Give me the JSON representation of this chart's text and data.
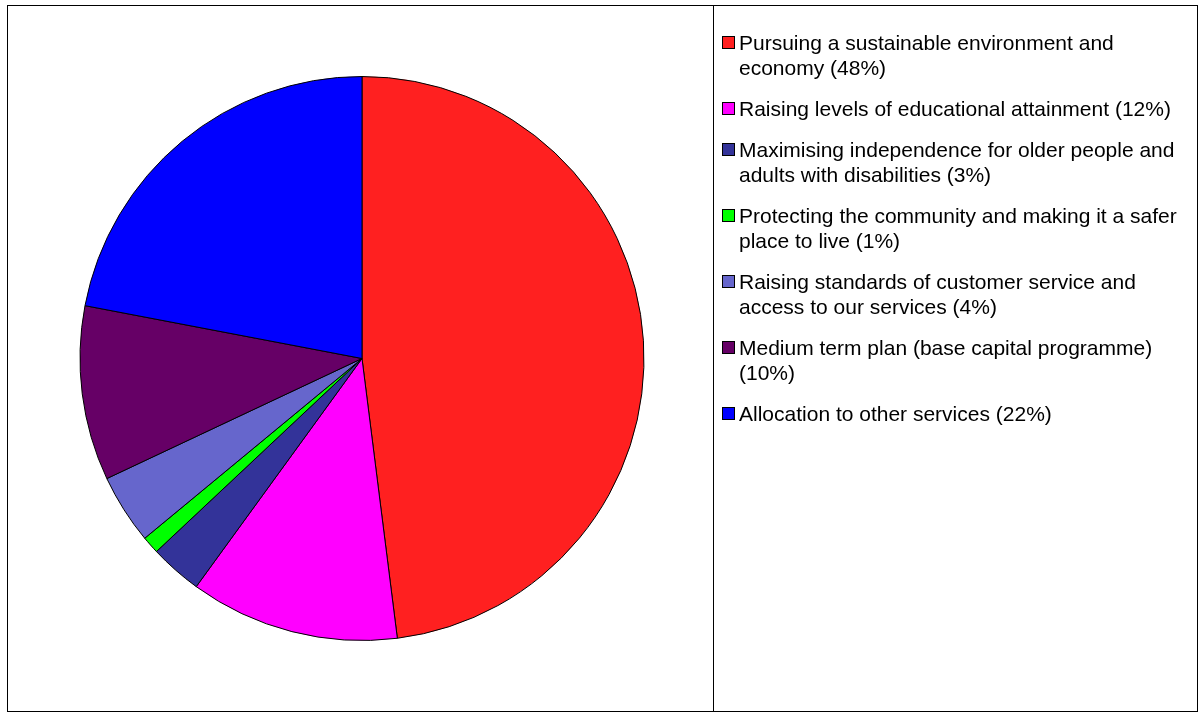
{
  "chart_data": {
    "type": "pie",
    "categories": [
      "Pursuing a sustainable environment and economy (48%)",
      "Raising levels of educational attainment (12%)",
      "Maximising independence for older people and adults with disabilities (3%)",
      "Protecting the community and making it a safer place to live (1%)",
      "Raising standards of customer service and access to our services (4%)",
      "Medium term plan (base capital programme) (10%)",
      "Allocation to other services (22%)"
    ],
    "values": [
      48,
      12,
      3,
      1,
      4,
      10,
      22
    ],
    "colors": [
      "#ff2020",
      "#ff00ff",
      "#333399",
      "#00ff00",
      "#6666cc",
      "#660066",
      "#0000ff"
    ],
    "legend": "right"
  }
}
